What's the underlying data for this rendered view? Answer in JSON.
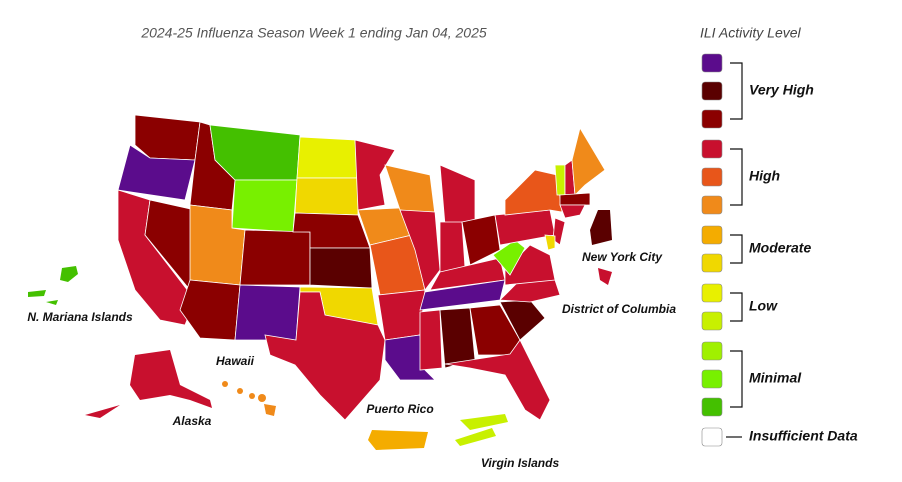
{
  "title": "2024-25 Influenza Season Week 1 ending Jan 04, 2025",
  "legend": {
    "title": "ILI Activity Level",
    "groups": [
      {
        "label": "Very High",
        "colors": [
          "#5b0c8c",
          "#5a0000",
          "#8b0000"
        ]
      },
      {
        "label": "High",
        "colors": [
          "#c8102e",
          "#e8561a",
          "#f08a1a"
        ]
      },
      {
        "label": "Moderate",
        "colors": [
          "#f4ac00",
          "#f0d800"
        ]
      },
      {
        "label": "Low",
        "colors": [
          "#e8f000",
          "#c8f000"
        ]
      },
      {
        "label": "Minimal",
        "colors": [
          "#a0f000",
          "#78f000",
          "#44c000"
        ]
      },
      {
        "label": "Insufficient Data",
        "colors": [
          "#ffffff"
        ]
      }
    ]
  },
  "map_labels": [
    "N. Mariana Islands",
    "Hawaii",
    "Alaska",
    "Puerto Rico",
    "Virgin Islands",
    "New York City",
    "District of Columbia"
  ]
}
